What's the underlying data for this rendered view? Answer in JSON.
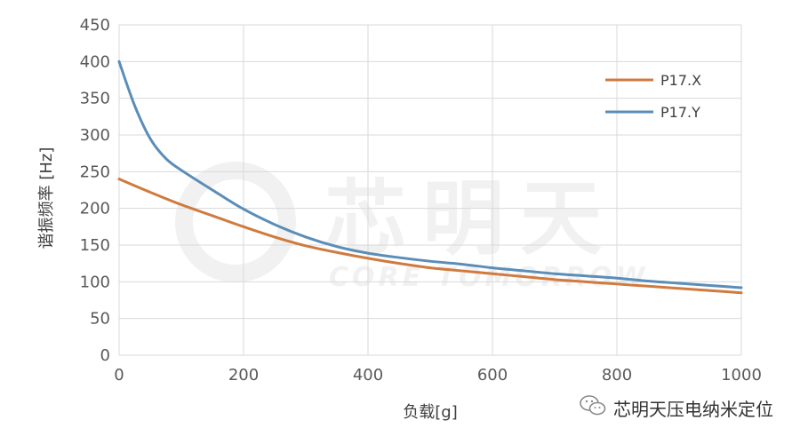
{
  "chart_data": {
    "type": "line",
    "xlabel": "负载[g]",
    "ylabel": "谐振频率 [Hz]",
    "xlim": [
      0,
      1000
    ],
    "ylim": [
      0,
      450
    ],
    "xticks": [
      0,
      200,
      400,
      600,
      800,
      1000
    ],
    "yticks": [
      0,
      50,
      100,
      150,
      200,
      250,
      300,
      350,
      400,
      450
    ],
    "grid": true,
    "legend_position": "top-right",
    "series": [
      {
        "name": "P17.X",
        "color": "#d07a3e",
        "x": [
          0,
          50,
          100,
          150,
          200,
          250,
          300,
          350,
          400,
          450,
          500,
          550,
          600,
          650,
          700,
          750,
          800,
          850,
          900,
          950,
          1000
        ],
        "y": [
          240,
          222,
          205,
          190,
          175,
          161,
          149,
          140,
          132,
          125,
          119,
          115,
          111,
          107,
          103,
          100,
          97,
          94,
          91,
          88,
          85
        ]
      },
      {
        "name": "P17.Y",
        "color": "#5a8db8",
        "x": [
          0,
          25,
          50,
          75,
          100,
          150,
          200,
          250,
          300,
          350,
          400,
          450,
          500,
          550,
          600,
          650,
          700,
          750,
          800,
          850,
          900,
          950,
          1000
        ],
        "y": [
          400,
          340,
          295,
          268,
          252,
          225,
          199,
          178,
          161,
          148,
          139,
          133,
          128,
          124,
          119,
          115,
          111,
          108,
          105,
          101,
          98,
          95,
          92
        ]
      }
    ]
  },
  "watermark": {
    "text": "芯明天",
    "subtext": "CORE TOMORROW"
  },
  "credit": {
    "label": "芯明天压电纳米定位",
    "icon": "wechat-icon"
  }
}
